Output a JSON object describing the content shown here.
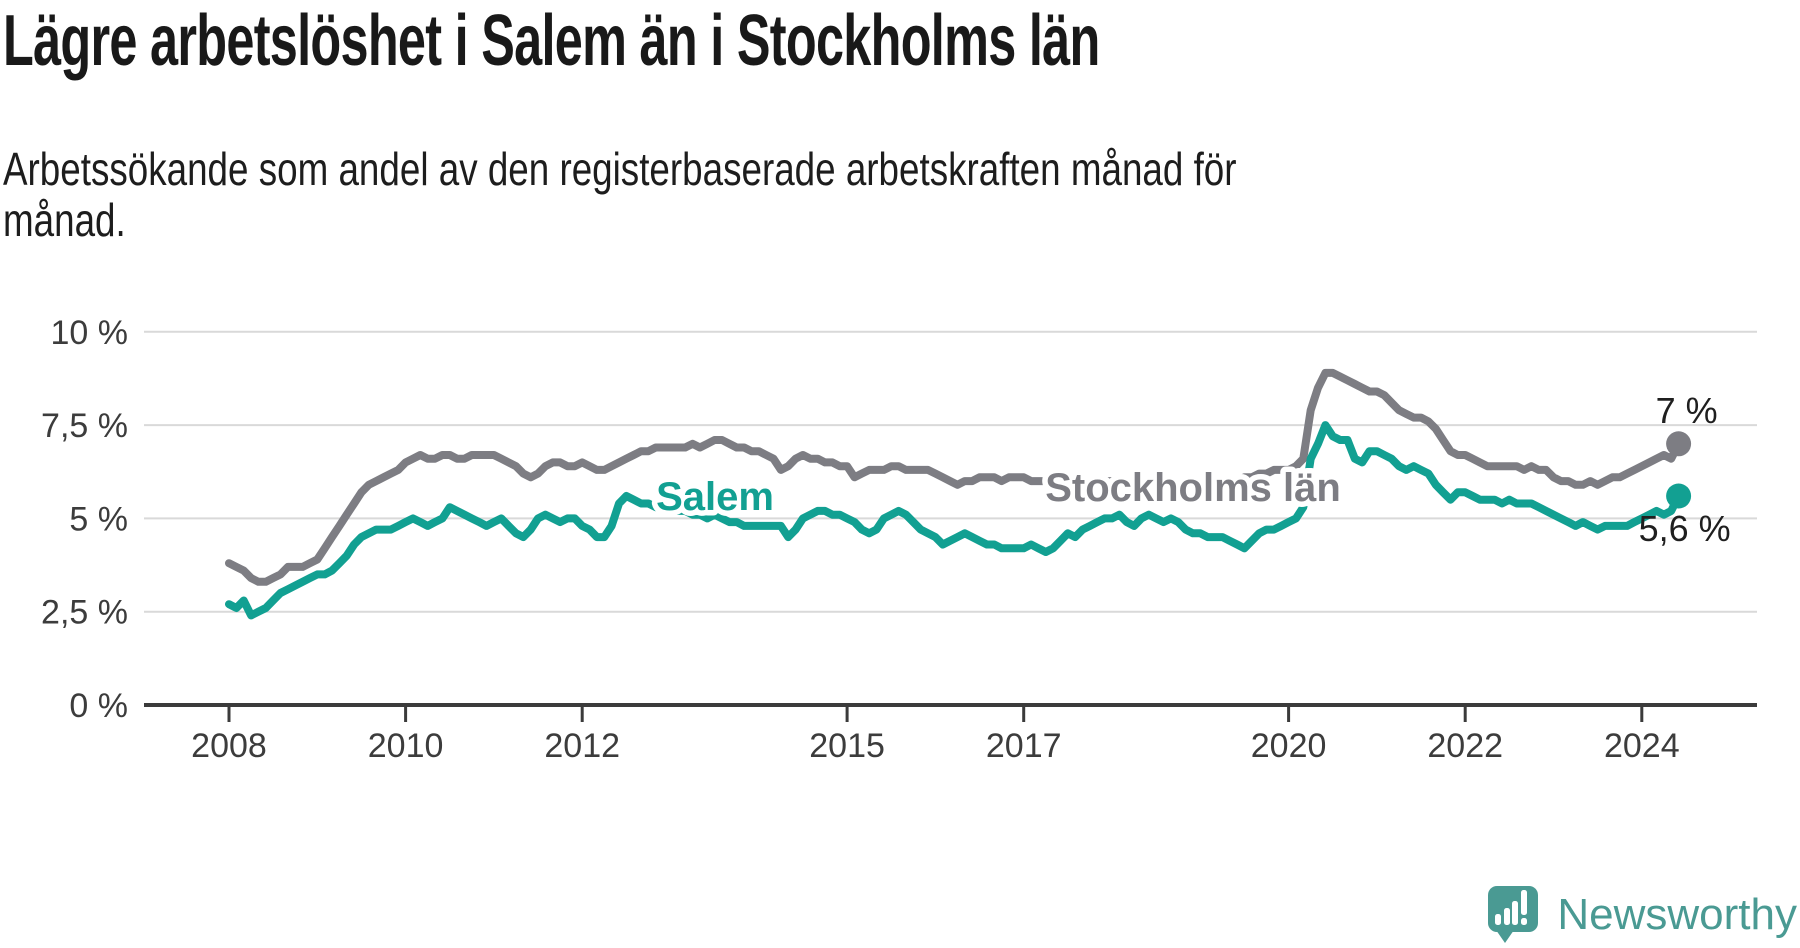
{
  "header": {
    "title": "Lägre arbetslöshet i Salem än i Stockholms län",
    "subtitle_lines": [
      "Arbetssökande som andel av den registerbaserade arbetskraften månad för",
      "månad."
    ]
  },
  "chart_data": {
    "type": "line",
    "title": "Lägre arbetslöshet i Salem än i Stockholms län",
    "subtitle": "Arbetssökande som andel av den registerbaserade arbetskraften månad för månad.",
    "unit": "%",
    "frequency": "monthly",
    "x_start": "2008-01",
    "x_end": "2024-06",
    "xlabel": "",
    "ylabel": "",
    "ylim": [
      0,
      10
    ],
    "grid": "horizontal",
    "legend_position": "inline-labels",
    "x_tick_years": [
      2008,
      2010,
      2012,
      2015,
      2017,
      2020,
      2022,
      2024
    ],
    "y_ticks": [
      {
        "value": 0,
        "label": "0 %"
      },
      {
        "value": 2.5,
        "label": "2,5 %"
      },
      {
        "value": 5,
        "label": "5 %"
      },
      {
        "value": 7.5,
        "label": "7,5 %"
      },
      {
        "value": 10,
        "label": "10 %"
      }
    ],
    "series": [
      {
        "name": "Stockholms län",
        "color": "#7d7d83",
        "end_label": "7 %",
        "end_value": 7.0,
        "values": [
          3.8,
          3.7,
          3.6,
          3.4,
          3.3,
          3.3,
          3.4,
          3.5,
          3.7,
          3.7,
          3.7,
          3.8,
          3.9,
          4.2,
          4.5,
          4.8,
          5.1,
          5.4,
          5.7,
          5.9,
          6.0,
          6.1,
          6.2,
          6.3,
          6.5,
          6.6,
          6.7,
          6.6,
          6.6,
          6.7,
          6.7,
          6.6,
          6.6,
          6.7,
          6.7,
          6.7,
          6.7,
          6.6,
          6.5,
          6.4,
          6.2,
          6.1,
          6.2,
          6.4,
          6.5,
          6.5,
          6.4,
          6.4,
          6.5,
          6.4,
          6.3,
          6.3,
          6.4,
          6.5,
          6.6,
          6.7,
          6.8,
          6.8,
          6.9,
          6.9,
          6.9,
          6.9,
          6.9,
          7.0,
          6.9,
          7.0,
          7.1,
          7.1,
          7.0,
          6.9,
          6.9,
          6.8,
          6.8,
          6.7,
          6.6,
          6.3,
          6.4,
          6.6,
          6.7,
          6.6,
          6.6,
          6.5,
          6.5,
          6.4,
          6.4,
          6.1,
          6.2,
          6.3,
          6.3,
          6.3,
          6.4,
          6.4,
          6.3,
          6.3,
          6.3,
          6.3,
          6.2,
          6.1,
          6.0,
          5.9,
          6.0,
          6.0,
          6.1,
          6.1,
          6.1,
          6.0,
          6.1,
          6.1,
          6.1,
          6.0,
          6.0,
          6.0,
          6.0,
          6.0,
          6.1,
          6.1,
          6.0,
          6.0,
          6.0,
          6.0,
          6.0,
          5.9,
          5.9,
          5.9,
          5.9,
          5.9,
          6.0,
          6.0,
          5.9,
          5.9,
          5.9,
          5.9,
          5.9,
          5.9,
          5.9,
          5.9,
          6.0,
          6.0,
          6.1,
          6.1,
          6.2,
          6.2,
          6.3,
          6.3,
          6.3,
          6.4,
          6.6,
          7.9,
          8.5,
          8.9,
          8.9,
          8.8,
          8.7,
          8.6,
          8.5,
          8.4,
          8.4,
          8.3,
          8.1,
          7.9,
          7.8,
          7.7,
          7.7,
          7.6,
          7.4,
          7.1,
          6.8,
          6.7,
          6.7,
          6.6,
          6.5,
          6.4,
          6.4,
          6.4,
          6.4,
          6.4,
          6.3,
          6.4,
          6.3,
          6.3,
          6.1,
          6.0,
          6.0,
          5.9,
          5.9,
          6.0,
          5.9,
          6.0,
          6.1,
          6.1,
          6.2,
          6.3,
          6.4,
          6.5,
          6.6,
          6.7,
          6.6,
          7.0
        ]
      },
      {
        "name": "Salem",
        "color": "#12a092",
        "end_label": "5,6 %",
        "end_value": 5.6,
        "values": [
          2.7,
          2.6,
          2.8,
          2.4,
          2.5,
          2.6,
          2.8,
          3.0,
          3.1,
          3.2,
          3.3,
          3.4,
          3.5,
          3.5,
          3.6,
          3.8,
          4.0,
          4.3,
          4.5,
          4.6,
          4.7,
          4.7,
          4.7,
          4.8,
          4.9,
          5.0,
          4.9,
          4.8,
          4.9,
          5.0,
          5.3,
          5.2,
          5.1,
          5.0,
          4.9,
          4.8,
          4.9,
          5.0,
          4.8,
          4.6,
          4.5,
          4.7,
          5.0,
          5.1,
          5.0,
          4.9,
          5.0,
          5.0,
          4.8,
          4.7,
          4.5,
          4.5,
          4.8,
          5.4,
          5.6,
          5.5,
          5.4,
          5.4,
          5.3,
          5.3,
          5.3,
          5.2,
          5.2,
          5.1,
          5.1,
          5.0,
          5.1,
          5.0,
          4.9,
          4.9,
          4.8,
          4.8,
          4.8,
          4.8,
          4.8,
          4.8,
          4.5,
          4.7,
          5.0,
          5.1,
          5.2,
          5.2,
          5.1,
          5.1,
          5.0,
          4.9,
          4.7,
          4.6,
          4.7,
          5.0,
          5.1,
          5.2,
          5.1,
          4.9,
          4.7,
          4.6,
          4.5,
          4.3,
          4.4,
          4.5,
          4.6,
          4.5,
          4.4,
          4.3,
          4.3,
          4.2,
          4.2,
          4.2,
          4.2,
          4.3,
          4.2,
          4.1,
          4.2,
          4.4,
          4.6,
          4.5,
          4.7,
          4.8,
          4.9,
          5.0,
          5.0,
          5.1,
          4.9,
          4.8,
          5.0,
          5.1,
          5.0,
          4.9,
          5.0,
          4.9,
          4.7,
          4.6,
          4.6,
          4.5,
          4.5,
          4.5,
          4.4,
          4.3,
          4.2,
          4.4,
          4.6,
          4.7,
          4.7,
          4.8,
          4.9,
          5.0,
          5.3,
          6.6,
          7.0,
          7.5,
          7.2,
          7.1,
          7.1,
          6.6,
          6.5,
          6.8,
          6.8,
          6.7,
          6.6,
          6.4,
          6.3,
          6.4,
          6.3,
          6.2,
          5.9,
          5.7,
          5.5,
          5.7,
          5.7,
          5.6,
          5.5,
          5.5,
          5.5,
          5.4,
          5.5,
          5.4,
          5.4,
          5.4,
          5.3,
          5.2,
          5.1,
          5.0,
          4.9,
          4.8,
          4.9,
          4.8,
          4.7,
          4.8,
          4.8,
          4.8,
          4.8,
          4.9,
          5.0,
          5.1,
          5.2,
          5.1,
          5.2,
          5.6
        ]
      }
    ]
  },
  "chart_style": {
    "gridline_color": "#d9d9d9",
    "axis_color": "#3b3b3b",
    "tick_label_color": "#3c3c3c",
    "annotation_color": "#1f1f1f"
  },
  "branding": {
    "wordmark": "Newsworthy",
    "color": "#4a9a93"
  }
}
